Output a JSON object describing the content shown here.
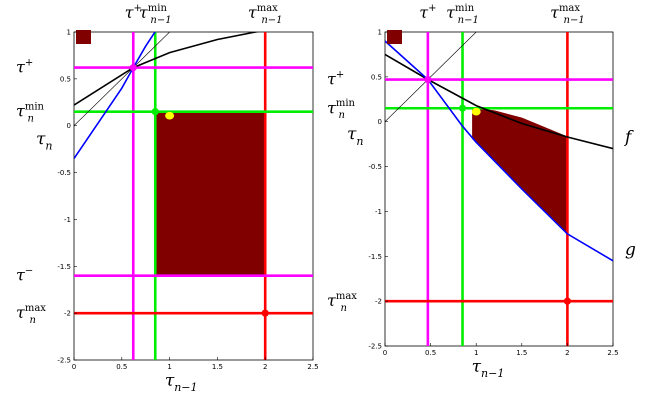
{
  "chart_data": [
    {
      "type": "line",
      "xlim": [
        0,
        2.5
      ],
      "ylim": [
        -2.5,
        1
      ],
      "xticks": [
        0,
        0.5,
        1,
        1.5,
        2,
        2.5
      ],
      "yticks": [
        1,
        0.5,
        0,
        -0.5,
        -1,
        -1.5,
        -2,
        -2.5
      ],
      "xtick_labels": [
        "0",
        "0.5",
        "1",
        "1.5",
        "2",
        "2.5"
      ],
      "ytick_labels": [
        "1",
        "0.5",
        "0",
        "-0.5",
        "-1",
        "-1.5",
        "-2",
        "-2.5"
      ],
      "xlabel": {
        "base": "τ",
        "sub": "n−1"
      },
      "ylabel": {
        "base": "τ",
        "sub": "n"
      },
      "grid": false,
      "legend": "none",
      "top_labels": [
        {
          "base": "τ",
          "sup": "+",
          "x": 0.62
        },
        {
          "base": "τ",
          "sub": "n−1",
          "sup": "min",
          "x": 0.85
        },
        {
          "base": "τ",
          "sub": "n−1",
          "sup": "max",
          "x": 2.0
        }
      ],
      "left_labels": [
        {
          "base": "τ",
          "sup": "+",
          "y": 0.62
        },
        {
          "base": "τ",
          "sub": "n",
          "sup": "min",
          "y": 0.15
        },
        {
          "base": "τ",
          "sup": "−",
          "y": -1.6
        },
        {
          "base": "τ",
          "sub": "n",
          "sup": "max",
          "y": -2.0
        }
      ],
      "vlines": [
        {
          "x": 0.62,
          "color": "#ff00ff"
        },
        {
          "x": 0.85,
          "color": "#00ee00"
        },
        {
          "x": 2.0,
          "color": "#ff0000"
        }
      ],
      "hlines": [
        {
          "y": 0.62,
          "color": "#ff00ff"
        },
        {
          "y": 0.15,
          "color": "#00ee00"
        },
        {
          "y": -1.6,
          "color": "#ff0000",
          "note": "tau-minus line drawn magenta"
        },
        {
          "y": -2.0,
          "color": "#ff0000"
        }
      ],
      "curves": [
        {
          "role": "f",
          "color": "#000000",
          "points": [
            [
              0,
              0.22
            ],
            [
              0.62,
              0.62
            ],
            [
              1.0,
              0.78
            ],
            [
              1.5,
              0.92
            ],
            [
              2.0,
              1.02
            ]
          ]
        },
        {
          "role": "g",
          "color": "#0000ff",
          "points": [
            [
              0,
              -0.35
            ],
            [
              0.3,
              0.1
            ],
            [
              0.5,
              0.4
            ],
            [
              0.62,
              0.62
            ],
            [
              0.75,
              0.85
            ],
            [
              0.88,
              1.05
            ]
          ]
        },
        {
          "role": "diagonal",
          "color": "#000000",
          "thin": true,
          "points": [
            [
              0,
              0.0
            ],
            [
              0.62,
              0.62
            ],
            [
              1.0,
              1.0
            ]
          ]
        }
      ],
      "region": {
        "color": "#800000",
        "polygon": [
          [
            0.85,
            0.15
          ],
          [
            2.0,
            0.15
          ],
          [
            2.0,
            -1.6
          ],
          [
            0.85,
            -1.6
          ]
        ]
      },
      "points": [
        {
          "x": 0.85,
          "y": 0.15,
          "color": "#00ee00"
        },
        {
          "x": 2.0,
          "y": -2.0,
          "color": "#ff0000"
        },
        {
          "x": 1.0,
          "y": 0.0,
          "color": "#ffff00"
        },
        {
          "x": 0.62,
          "y": 0.62,
          "color": "#ff00ff"
        }
      ],
      "swatch_color": "#800000",
      "curve_labels": []
    },
    {
      "type": "line",
      "xlim": [
        0,
        2.5
      ],
      "ylim": [
        -2.5,
        1
      ],
      "xticks": [
        0,
        0.5,
        1,
        1.5,
        2,
        2.5
      ],
      "yticks": [
        1,
        0.5,
        0,
        -0.5,
        -1,
        -1.5,
        -2,
        -2.5
      ],
      "xtick_labels": [
        "0",
        "0.5",
        "1",
        "1.5",
        "2",
        "2.5"
      ],
      "ytick_labels": [
        "1",
        "0.5",
        "0",
        "-0.5",
        "-1",
        "-1.5",
        "-2",
        "-2.5"
      ],
      "xlabel": {
        "base": "τ",
        "sub": "n−1"
      },
      "ylabel": {
        "base": "τ",
        "sub": "n"
      },
      "grid": false,
      "legend": "none",
      "top_labels": [
        {
          "base": "τ",
          "sup": "+",
          "x": 0.47
        },
        {
          "base": "τ",
          "sub": "n−1",
          "sup": "min",
          "x": 0.85
        },
        {
          "base": "τ",
          "sub": "n−1",
          "sup": "max",
          "x": 2.0
        }
      ],
      "left_labels": [
        {
          "base": "τ",
          "sup": "+",
          "y": 0.47
        },
        {
          "base": "τ",
          "sub": "n",
          "sup": "min",
          "y": 0.15
        },
        {
          "base": "τ",
          "sub": "n",
          "sup": "max",
          "y": -2.0
        }
      ],
      "vlines": [
        {
          "x": 0.47,
          "color": "#ff00ff"
        },
        {
          "x": 0.85,
          "color": "#00ee00"
        },
        {
          "x": 2.0,
          "color": "#ff0000"
        }
      ],
      "hlines": [
        {
          "y": 0.47,
          "color": "#ff00ff"
        },
        {
          "y": 0.15,
          "color": "#00ee00"
        },
        {
          "y": -2.0,
          "color": "#ff0000"
        }
      ],
      "curves": [
        {
          "role": "f",
          "color": "#000000",
          "points": [
            [
              0,
              0.75
            ],
            [
              0.47,
              0.47
            ],
            [
              1.0,
              0.18
            ],
            [
              1.5,
              -0.02
            ],
            [
              2.0,
              -0.17
            ],
            [
              2.5,
              -0.3
            ]
          ]
        },
        {
          "role": "g",
          "color": "#0000ff",
          "points": [
            [
              0,
              0.9
            ],
            [
              0.47,
              0.47
            ],
            [
              0.85,
              -0.05
            ],
            [
              1.0,
              -0.23
            ],
            [
              1.5,
              -0.75
            ],
            [
              2.0,
              -1.25
            ],
            [
              2.5,
              -1.55
            ]
          ]
        },
        {
          "role": "diagonal",
          "color": "#000000",
          "thin": true,
          "points": [
            [
              0,
              0.0
            ],
            [
              0.47,
              0.47
            ],
            [
              1.0,
              1.0
            ]
          ]
        }
      ],
      "region": {
        "color": "#800000",
        "polygon": [
          [
            0.96,
            0.15
          ],
          [
            1.2,
            0.12
          ],
          [
            1.5,
            0.04
          ],
          [
            2.0,
            -0.17
          ],
          [
            2.0,
            -1.25
          ],
          [
            1.5,
            -0.75
          ],
          [
            1.0,
            -0.23
          ],
          [
            0.96,
            -0.19
          ]
        ]
      },
      "points": [
        {
          "x": 0.85,
          "y": 0.15,
          "color": "#00ee00"
        },
        {
          "x": 2.0,
          "y": -2.0,
          "color": "#ff0000"
        },
        {
          "x": 1.0,
          "y": 0.0,
          "color": "#ffff00"
        },
        {
          "x": 0.47,
          "y": 0.47,
          "color": "#ff00ff"
        }
      ],
      "swatch_color": "#800000",
      "curve_labels": [
        {
          "text": "f",
          "curve": "f"
        },
        {
          "text": "g",
          "curve": "g"
        }
      ]
    }
  ]
}
